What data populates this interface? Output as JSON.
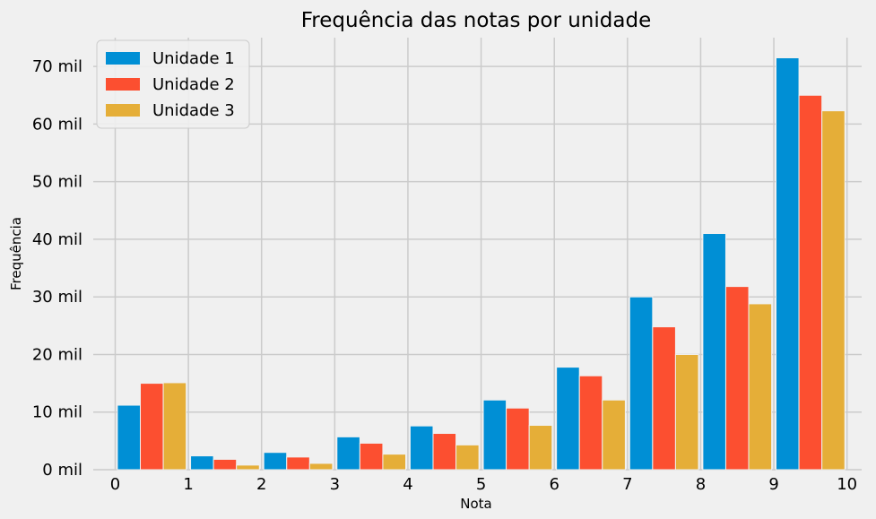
{
  "chart_data": {
    "type": "bar",
    "title": "Frequência das notas por unidade",
    "xlabel": "Nota",
    "ylabel": "Frequência",
    "xlim": [
      -0.3,
      10.2
    ],
    "ylim": [
      0,
      75000
    ],
    "xticks": [
      0,
      1,
      2,
      3,
      4,
      5,
      6,
      7,
      8,
      9,
      10
    ],
    "yticks": [
      0,
      10000,
      20000,
      30000,
      40000,
      50000,
      60000,
      70000
    ],
    "ytick_labels": [
      "0 mil",
      "10 mil",
      "20 mil",
      "30 mil",
      "40 mil",
      "50 mil",
      "60 mil",
      "70 mil"
    ],
    "bins": [
      [
        0,
        1
      ],
      [
        1,
        2
      ],
      [
        2,
        3
      ],
      [
        3,
        4
      ],
      [
        4,
        5
      ],
      [
        5,
        6
      ],
      [
        6,
        7
      ],
      [
        7,
        8
      ],
      [
        8,
        9
      ],
      [
        9,
        10
      ]
    ],
    "series": [
      {
        "name": "Unidade 1",
        "color": "#008fd5",
        "values": [
          11200,
          2400,
          3000,
          5700,
          7600,
          12100,
          17800,
          30000,
          41000,
          71500
        ]
      },
      {
        "name": "Unidade 2",
        "color": "#fc4f30",
        "values": [
          15000,
          1800,
          2200,
          4600,
          6300,
          10700,
          16300,
          24800,
          31800,
          65000
        ]
      },
      {
        "name": "Unidade 3",
        "color": "#e5ae38",
        "values": [
          15100,
          800,
          1100,
          2700,
          4300,
          7700,
          12100,
          20000,
          28800,
          62300
        ]
      }
    ],
    "grid": true,
    "legend_position": "top-left"
  }
}
